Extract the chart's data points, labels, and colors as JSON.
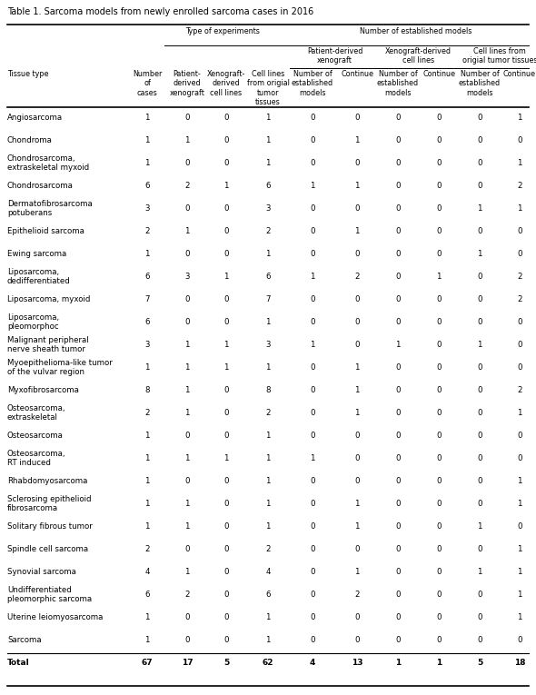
{
  "title": "Table 1. Sarcoma models from newly enrolled sarcoma cases in 2016",
  "rows": [
    [
      "Angiosarcoma",
      "1",
      "0",
      "0",
      "1",
      "0",
      "0",
      "0",
      "0",
      "0",
      "1"
    ],
    [
      "Chondroma",
      "1",
      "1",
      "0",
      "1",
      "0",
      "1",
      "0",
      "0",
      "0",
      "0"
    ],
    [
      "Chondrosarcoma,\nextraskeletal myxoid",
      "1",
      "0",
      "0",
      "1",
      "0",
      "0",
      "0",
      "0",
      "0",
      "1"
    ],
    [
      "Chondrosarcoma",
      "6",
      "2",
      "1",
      "6",
      "1",
      "1",
      "0",
      "0",
      "0",
      "2"
    ],
    [
      "Dermatofibrosarcoma\npotuberans",
      "3",
      "0",
      "0",
      "3",
      "0",
      "0",
      "0",
      "0",
      "1",
      "1"
    ],
    [
      "Epithelioid sarcoma",
      "2",
      "1",
      "0",
      "2",
      "0",
      "1",
      "0",
      "0",
      "0",
      "0"
    ],
    [
      "Ewing sarcoma",
      "1",
      "0",
      "0",
      "1",
      "0",
      "0",
      "0",
      "0",
      "1",
      "0"
    ],
    [
      "Liposarcoma,\ndedifferentiated",
      "6",
      "3",
      "1",
      "6",
      "1",
      "2",
      "0",
      "1",
      "0",
      "2"
    ],
    [
      "Liposarcoma, myxoid",
      "7",
      "0",
      "0",
      "7",
      "0",
      "0",
      "0",
      "0",
      "0",
      "2"
    ],
    [
      "Liposarcoma,\npleomorphoc",
      "6",
      "0",
      "0",
      "1",
      "0",
      "0",
      "0",
      "0",
      "0",
      "0"
    ],
    [
      "Malignant peripheral\nnerve sheath tumor",
      "3",
      "1",
      "1",
      "3",
      "1",
      "0",
      "1",
      "0",
      "1",
      "0"
    ],
    [
      "Myoepithelioma-like tumor\nof the vulvar region",
      "1",
      "1",
      "1",
      "1",
      "0",
      "1",
      "0",
      "0",
      "0",
      "0"
    ],
    [
      "Myxofibrosarcoma",
      "8",
      "1",
      "0",
      "8",
      "0",
      "1",
      "0",
      "0",
      "0",
      "2"
    ],
    [
      "Osteosarcoma,\nextraskeletal",
      "2",
      "1",
      "0",
      "2",
      "0",
      "1",
      "0",
      "0",
      "0",
      "1"
    ],
    [
      "Osteosarcoma",
      "1",
      "0",
      "0",
      "1",
      "0",
      "0",
      "0",
      "0",
      "0",
      "0"
    ],
    [
      "Osteosarcoma,\nRT induced",
      "1",
      "1",
      "1",
      "1",
      "1",
      "0",
      "0",
      "0",
      "0",
      "0"
    ],
    [
      "Rhabdomyosarcoma",
      "1",
      "0",
      "0",
      "1",
      "0",
      "0",
      "0",
      "0",
      "0",
      "1"
    ],
    [
      "Sclerosing epithelioid\nfibrosarcoma",
      "1",
      "1",
      "0",
      "1",
      "0",
      "1",
      "0",
      "0",
      "0",
      "1"
    ],
    [
      "Solitary fibrous tumor",
      "1",
      "1",
      "0",
      "1",
      "0",
      "1",
      "0",
      "0",
      "1",
      "0"
    ],
    [
      "Spindle cell sarcoma",
      "2",
      "0",
      "0",
      "2",
      "0",
      "0",
      "0",
      "0",
      "0",
      "1"
    ],
    [
      "Synovial sarcoma",
      "4",
      "1",
      "0",
      "4",
      "0",
      "1",
      "0",
      "0",
      "1",
      "1"
    ],
    [
      "Undifferentiated\npleomorphic sarcoma",
      "6",
      "2",
      "0",
      "6",
      "0",
      "2",
      "0",
      "0",
      "0",
      "1"
    ],
    [
      "Uterine leiomyosarcoma",
      "1",
      "0",
      "0",
      "1",
      "0",
      "0",
      "0",
      "0",
      "0",
      "1"
    ],
    [
      "Sarcoma",
      "1",
      "0",
      "0",
      "1",
      "0",
      "0",
      "0",
      "0",
      "0",
      "0"
    ],
    [
      "Total",
      "67",
      "17",
      "5",
      "62",
      "4",
      "13",
      "1",
      "1",
      "5",
      "18"
    ]
  ],
  "fs_title": 7.0,
  "fs_header": 5.8,
  "fs_data": 6.2,
  "fs_total": 6.5
}
